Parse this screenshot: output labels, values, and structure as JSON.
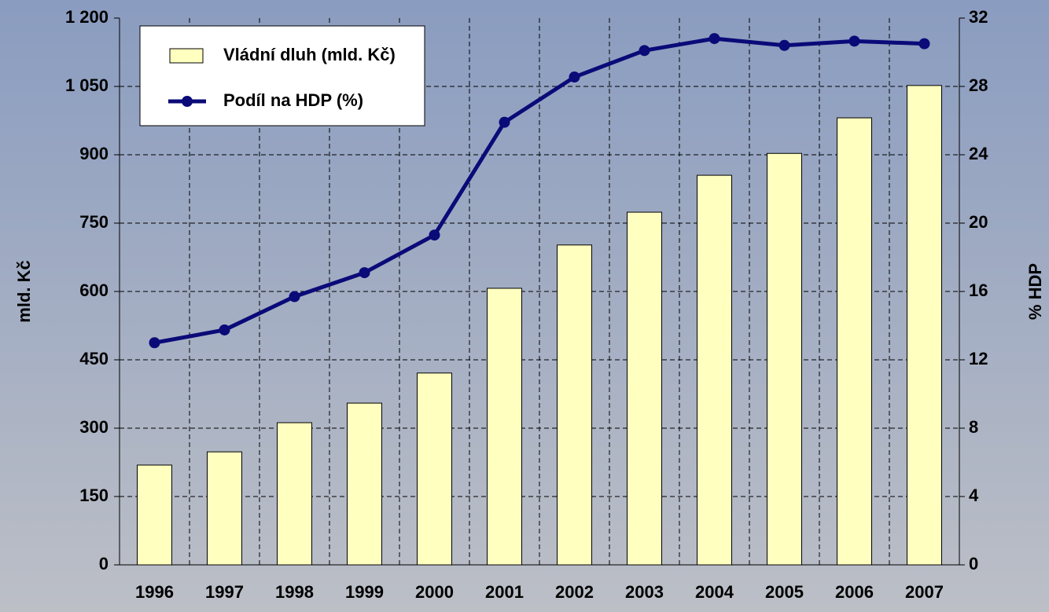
{
  "chart_data": {
    "type": "bar-line",
    "y_label": "mld. Kč",
    "y2_label": "% HDP",
    "categories": [
      "1996",
      "1997",
      "1998",
      "1999",
      "2000",
      "2001",
      "2002",
      "2003",
      "2004",
      "2005",
      "2006",
      "2007"
    ],
    "series": [
      {
        "name": "Vládní dluh (mld. Kč)",
        "type": "bar",
        "color": "#ffffc0",
        "values": [
          219,
          248,
          312,
          355,
          421,
          607,
          702,
          774,
          855,
          903,
          981,
          1052
        ]
      },
      {
        "name": "Podíl na HDP (%)",
        "type": "line",
        "axis": "y2",
        "color": "#0a0a78",
        "values": [
          13.0,
          13.75,
          15.7,
          17.1,
          19.3,
          25.9,
          28.55,
          30.1,
          30.8,
          30.4,
          30.65,
          30.5
        ]
      }
    ],
    "ylim": [
      0,
      1200
    ],
    "yticks": [
      0,
      150,
      300,
      450,
      600,
      750,
      900,
      {
        "value": 1050,
        "label": "1 050"
      },
      {
        "value": 1200,
        "label": "1 200"
      }
    ],
    "y2lim": [
      0,
      32
    ],
    "y2ticks": [
      0,
      4,
      8,
      12,
      16,
      20,
      24,
      28,
      32
    ],
    "grid": true,
    "legend": "top-left"
  }
}
